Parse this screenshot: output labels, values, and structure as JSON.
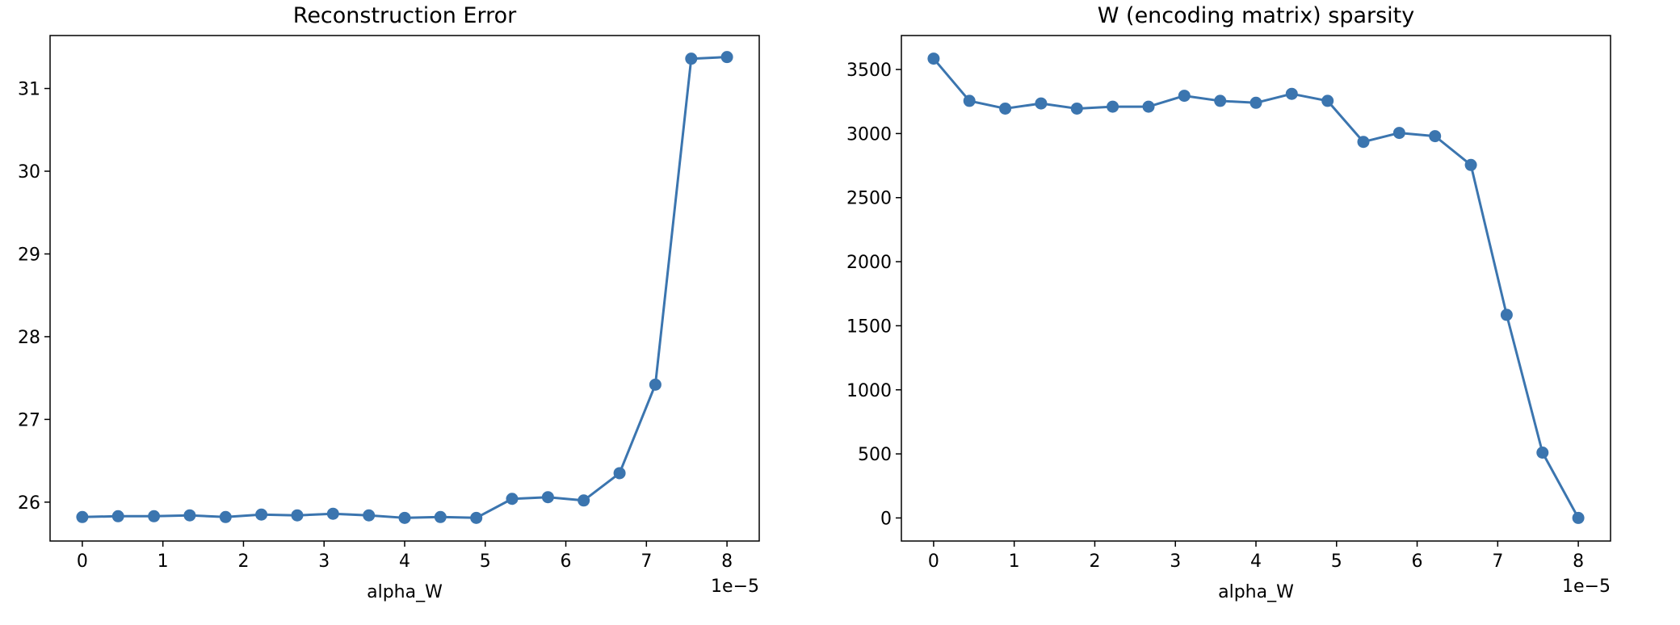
{
  "colors": {
    "series": "#3b75af",
    "axes": "#000000",
    "background": "#ffffff"
  },
  "chart_data": [
    {
      "type": "line",
      "marker": "circle",
      "title": "Reconstruction Error",
      "xlabel": "alpha_W",
      "ylabel": "",
      "x_offset_label": "1e−5",
      "xlim": [
        -0.4,
        8.4
      ],
      "ylim": [
        25.53,
        31.64
      ],
      "xticks": [
        0,
        1,
        2,
        3,
        4,
        5,
        6,
        7,
        8
      ],
      "yticks": [
        26,
        27,
        28,
        29,
        30,
        31
      ],
      "grid": false,
      "x": [
        0,
        0.444,
        0.889,
        1.333,
        1.778,
        2.222,
        2.667,
        3.111,
        3.556,
        4.0,
        4.444,
        4.889,
        5.333,
        5.778,
        6.222,
        6.667,
        7.111,
        7.556,
        8.0
      ],
      "series": [
        {
          "values": [
            25.82,
            25.83,
            25.83,
            25.84,
            25.82,
            25.85,
            25.84,
            25.86,
            25.84,
            25.81,
            25.82,
            25.81,
            26.04,
            26.06,
            26.02,
            26.35,
            27.42,
            31.36,
            31.38
          ]
        }
      ]
    },
    {
      "type": "line",
      "marker": "circle",
      "title": "W (encoding matrix) sparsity",
      "xlabel": "alpha_W",
      "ylabel": "",
      "x_offset_label": "1e−5",
      "xlim": [
        -0.4,
        8.4
      ],
      "ylim": [
        -180,
        3765
      ],
      "xticks": [
        0,
        1,
        2,
        3,
        4,
        5,
        6,
        7,
        8
      ],
      "yticks": [
        0,
        500,
        1000,
        1500,
        2000,
        2500,
        3000,
        3500
      ],
      "grid": false,
      "x": [
        0,
        0.444,
        0.889,
        1.333,
        1.778,
        2.222,
        2.667,
        3.111,
        3.556,
        4.0,
        4.444,
        4.889,
        5.333,
        5.778,
        6.222,
        6.667,
        7.111,
        7.556,
        8.0
      ],
      "series": [
        {
          "values": [
            3585,
            3255,
            3195,
            3235,
            3195,
            3210,
            3210,
            3295,
            3255,
            3240,
            3310,
            3255,
            2935,
            3005,
            2980,
            2755,
            1585,
            510,
            0
          ]
        }
      ]
    }
  ]
}
